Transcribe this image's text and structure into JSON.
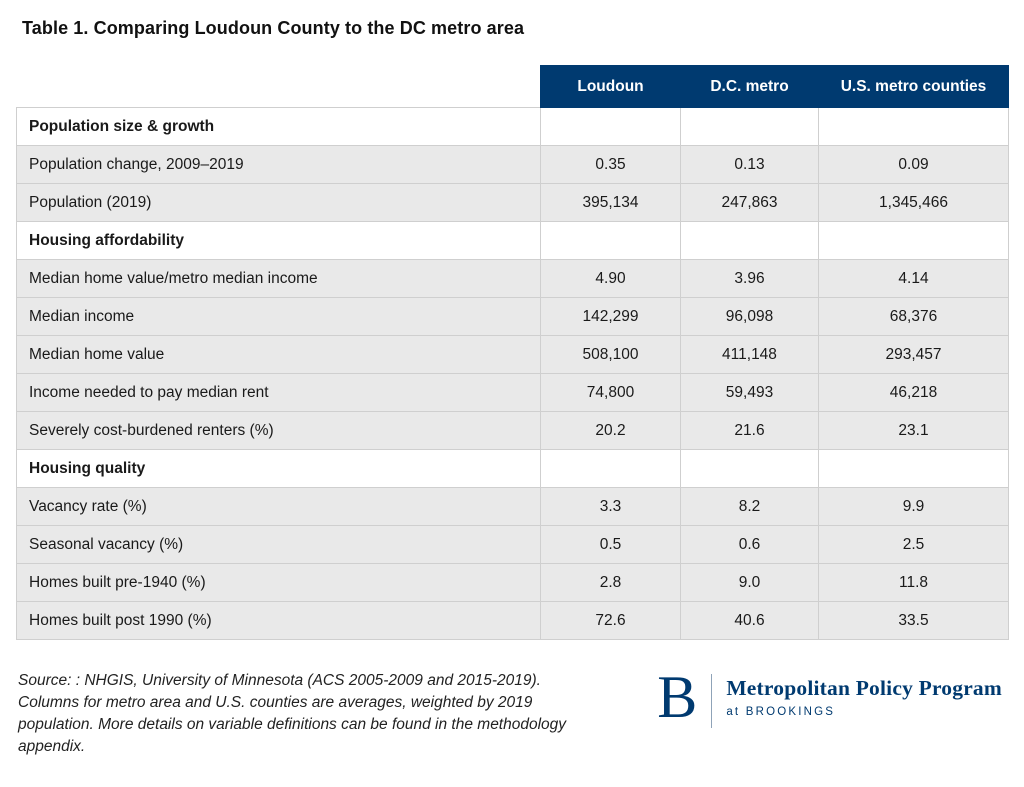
{
  "title": "Table 1. Comparing Loudoun County to the DC metro area",
  "colors": {
    "header_bg": "#003a70",
    "data_row_bg": "#e9e9e9",
    "border": "#cfcfcf",
    "brand_navy": "#003a70"
  },
  "table": {
    "corner_label": "",
    "columns": [
      "Loudoun",
      "D.C. metro",
      "U.S. metro counties"
    ],
    "rows": [
      {
        "type": "section",
        "label": "Population size & growth",
        "values": [
          "",
          "",
          ""
        ]
      },
      {
        "type": "data",
        "label": "Population change, 2009–2019",
        "values": [
          "0.35",
          "0.13",
          "0.09"
        ]
      },
      {
        "type": "data",
        "label": "Population (2019)",
        "values": [
          "395,134",
          "247,863",
          "1,345,466"
        ]
      },
      {
        "type": "section",
        "label": "Housing affordability",
        "values": [
          "",
          "",
          ""
        ]
      },
      {
        "type": "data",
        "label": "Median home value/metro median income",
        "values": [
          "4.90",
          "3.96",
          "4.14"
        ]
      },
      {
        "type": "data",
        "label": "Median income",
        "values": [
          "142,299",
          "96,098",
          "68,376"
        ]
      },
      {
        "type": "data",
        "label": "Median home value",
        "values": [
          "508,100",
          "411,148",
          "293,457"
        ]
      },
      {
        "type": "data",
        "label": "Income needed to pay median rent",
        "values": [
          "74,800",
          "59,493",
          "46,218"
        ]
      },
      {
        "type": "data",
        "label": "Severely cost-burdened renters (%)",
        "values": [
          "20.2",
          "21.6",
          "23.1"
        ]
      },
      {
        "type": "section",
        "label": "Housing quality",
        "values": [
          "",
          "",
          ""
        ]
      },
      {
        "type": "data",
        "label": "Vacancy rate (%)",
        "values": [
          "3.3",
          "8.2",
          "9.9"
        ]
      },
      {
        "type": "data",
        "label": "Seasonal vacancy (%)",
        "values": [
          "0.5",
          "0.6",
          "2.5"
        ]
      },
      {
        "type": "data",
        "label": "Homes built pre-1940 (%)",
        "values": [
          "2.8",
          "9.0",
          "11.8"
        ]
      },
      {
        "type": "data",
        "label": "Homes built post 1990 (%)",
        "values": [
          "72.6",
          "40.6",
          "33.5"
        ]
      }
    ]
  },
  "footer": {
    "source": "Source: : NHGIS, University of Minnesota (ACS 2005-2009 and 2015-2019). Columns for metro area and U.S. counties are averages, weighted by 2019 population. More details on variable definitions can be found in the methodology appendix.",
    "logo": {
      "letter": "B",
      "program": "Metropolitan Policy Program",
      "sub": "at BROOKINGS"
    }
  },
  "chart_data": {
    "type": "table",
    "title": "Table 1. Comparing Loudoun County to the DC metro area",
    "columns": [
      "Loudoun",
      "D.C. metro",
      "U.S. metro counties"
    ],
    "sections": [
      {
        "name": "Population size & growth",
        "rows": [
          {
            "label": "Population change, 2009–2019",
            "values": [
              0.35,
              0.13,
              0.09
            ]
          },
          {
            "label": "Population (2019)",
            "values": [
              395134,
              247863,
              1345466
            ]
          }
        ]
      },
      {
        "name": "Housing affordability",
        "rows": [
          {
            "label": "Median home value/metro median income",
            "values": [
              4.9,
              3.96,
              4.14
            ]
          },
          {
            "label": "Median income",
            "values": [
              142299,
              96098,
              68376
            ]
          },
          {
            "label": "Median home value",
            "values": [
              508100,
              411148,
              293457
            ]
          },
          {
            "label": "Income needed to pay median rent",
            "values": [
              74800,
              59493,
              46218
            ]
          },
          {
            "label": "Severely cost-burdened renters (%)",
            "values": [
              20.2,
              21.6,
              23.1
            ]
          }
        ]
      },
      {
        "name": "Housing quality",
        "rows": [
          {
            "label": "Vacancy rate (%)",
            "values": [
              3.3,
              8.2,
              9.9
            ]
          },
          {
            "label": "Seasonal vacancy (%)",
            "values": [
              0.5,
              0.6,
              2.5
            ]
          },
          {
            "label": "Homes built pre-1940 (%)",
            "values": [
              2.8,
              9.0,
              11.8
            ]
          },
          {
            "label": "Homes built post 1990 (%)",
            "values": [
              72.6,
              40.6,
              33.5
            ]
          }
        ]
      }
    ]
  }
}
